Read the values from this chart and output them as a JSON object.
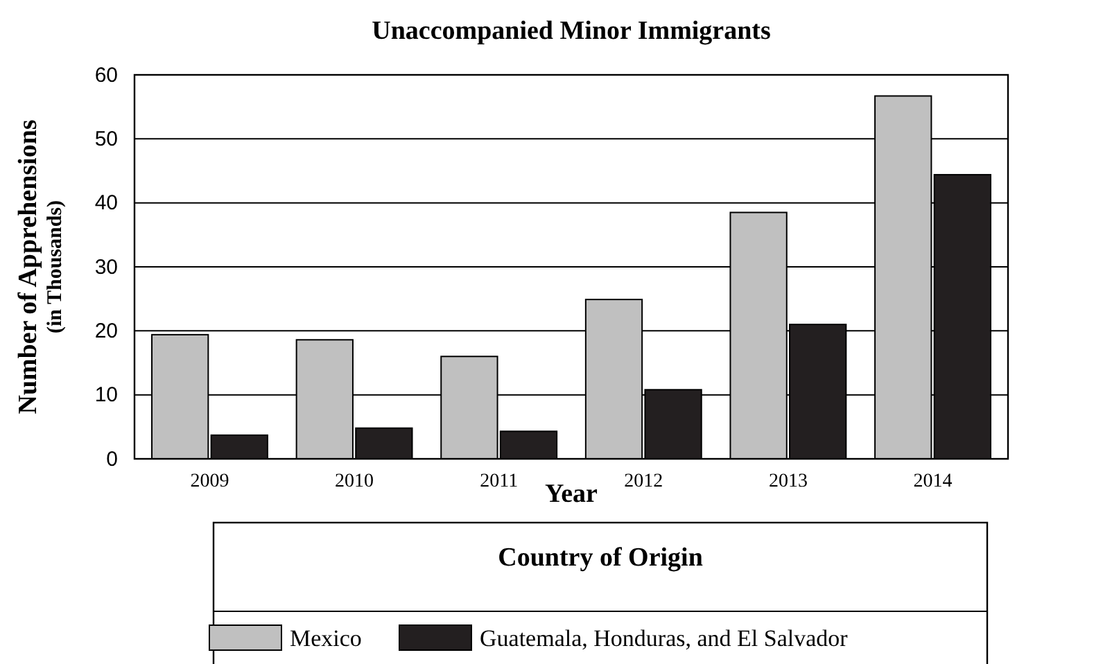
{
  "chart_data": {
    "type": "bar",
    "title": "Unaccompanied Minor Immigrants",
    "xlabel": "Year",
    "ylabel": "Number of Apprehensions\n(in Thousands)",
    "legend_title": "Country of Origin",
    "categories": [
      "2009",
      "2010",
      "2011",
      "2012",
      "2013",
      "2014"
    ],
    "series": [
      {
        "name": "Mexico",
        "color": "#c0c0c0",
        "values": [
          19.4,
          18.6,
          16.0,
          24.9,
          38.5,
          56.7
        ]
      },
      {
        "name": "Guatemala, Honduras, and El Salvador",
        "color": "#231f20",
        "values": [
          3.7,
          4.8,
          4.3,
          10.8,
          21.0,
          44.4
        ]
      }
    ],
    "ylim": [
      0,
      60
    ],
    "yticks": [
      0,
      10,
      20,
      30,
      40,
      50,
      60
    ],
    "grid": "y",
    "legend": "bottom"
  }
}
